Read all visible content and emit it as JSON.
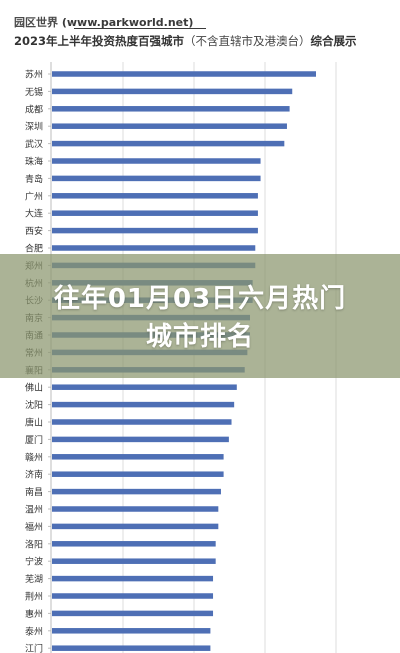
{
  "header": {
    "site_name": "园区世界",
    "site_url": "(www.parkworld.net)",
    "title_main": "2023年上半年投资热度百强城市",
    "title_paren": "（不含直辖市及港澳台）",
    "title_tail": "综合展示"
  },
  "banner": {
    "line1": "往年01月03日六月热门",
    "line2": "城市排名"
  },
  "chart_data": {
    "type": "bar",
    "orientation": "horizontal",
    "categories": [
      "苏州",
      "无锡",
      "成都",
      "深圳",
      "武汉",
      "珠海",
      "青岛",
      "广州",
      "大连",
      "西安",
      "合肥",
      "郑州",
      "杭州",
      "长沙",
      "南京",
      "南通",
      "常州",
      "襄阳",
      "佛山",
      "沈阳",
      "唐山",
      "厦门",
      "赣州",
      "济南",
      "南昌",
      "温州",
      "福州",
      "洛阳",
      "宁波",
      "芜湖",
      "荆州",
      "惠州",
      "泰州",
      "江门"
    ],
    "values": [
      100,
      91,
      90,
      89,
      88,
      79,
      79,
      78,
      78,
      78,
      77,
      77,
      76,
      76,
      75,
      75,
      74,
      73,
      70,
      69,
      68,
      67,
      65,
      65,
      64,
      63,
      63,
      62,
      62,
      61,
      61,
      61,
      60,
      60
    ],
    "color": "#4e6fb5",
    "grid": true
  }
}
